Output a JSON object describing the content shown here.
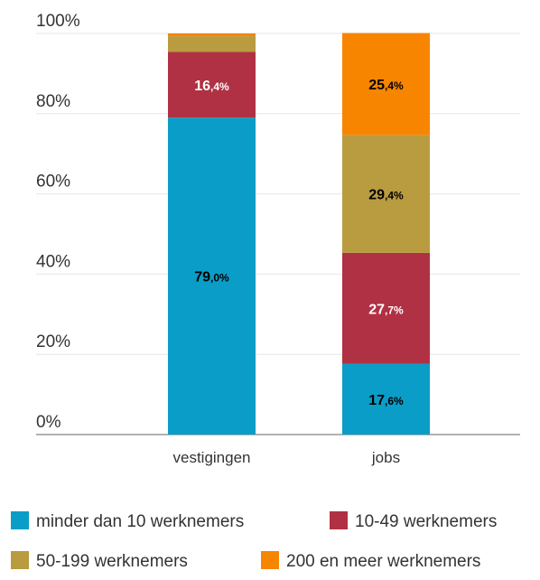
{
  "chart_data": {
    "type": "stacked_bar",
    "categories": [
      "vestigingen",
      "jobs"
    ],
    "series": [
      {
        "name": "minder dan 10 werknemers",
        "color": "#0a9dc7",
        "label_color": "#000000",
        "values": [
          79.0,
          17.6
        ],
        "value_labels": [
          "79,0%",
          "17,6%"
        ]
      },
      {
        "name": "10-49 werknemers",
        "color": "#b03143",
        "label_color": "#ffffff",
        "values": [
          16.4,
          27.7
        ],
        "value_labels": [
          "16,4%",
          "27,7%"
        ]
      },
      {
        "name": "50-199 werknemers",
        "color": "#b99b40",
        "label_color": "#000000",
        "values": [
          3.9,
          29.4
        ],
        "value_labels": [
          null,
          "29,4%"
        ]
      },
      {
        "name": "200 en meer werknemers",
        "color": "#f78500",
        "label_color": "#000000",
        "values": [
          0.7,
          25.4
        ],
        "value_labels": [
          null,
          "25,4%"
        ]
      }
    ],
    "ylim": [
      0,
      100
    ],
    "yticks": [
      {
        "value": 0,
        "label": "0%"
      },
      {
        "value": 20,
        "label": "20%"
      },
      {
        "value": 40,
        "label": "40%"
      },
      {
        "value": 60,
        "label": "60%"
      },
      {
        "value": 80,
        "label": "80%"
      },
      {
        "value": 100,
        "label": "100%"
      }
    ],
    "grid": true
  }
}
